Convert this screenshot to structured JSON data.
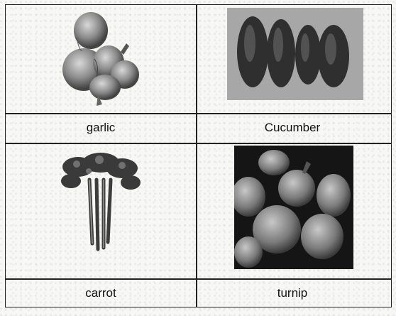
{
  "grid": {
    "labels": {
      "garlic": "garlic",
      "cucumber": "Cucumber",
      "carrot": "carrot",
      "turnip": "turnip"
    }
  }
}
